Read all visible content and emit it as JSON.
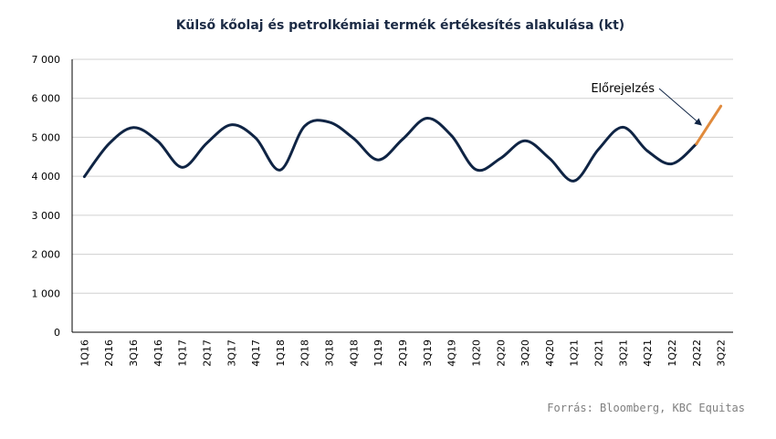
{
  "chart_data": {
    "type": "line",
    "title": "Külső kőolaj és petrolkémiai termék értékesítés alakulása (kt)",
    "categories": [
      "1Q16",
      "2Q16",
      "3Q16",
      "4Q16",
      "1Q17",
      "2Q17",
      "3Q17",
      "4Q17",
      "1Q18",
      "2Q18",
      "3Q18",
      "4Q18",
      "1Q19",
      "2Q19",
      "3Q19",
      "4Q19",
      "1Q20",
      "2Q20",
      "3Q20",
      "4Q20",
      "1Q21",
      "2Q21",
      "3Q21",
      "4Q21",
      "1Q22",
      "2Q22",
      "3Q22"
    ],
    "series": [
      {
        "name": "",
        "color": "#0f2444",
        "values": [
          3990,
          4830,
          5250,
          4900,
          4230,
          4850,
          5320,
          4980,
          4160,
          5290,
          5390,
          4970,
          4420,
          4950,
          5490,
          5040,
          4170,
          4460,
          4910,
          4460,
          3880,
          4690,
          5260,
          4650,
          4320,
          4830,
          null
        ]
      },
      {
        "name": "Előrejelzés",
        "color": "#e08a3c",
        "values": [
          null,
          null,
          null,
          null,
          null,
          null,
          null,
          null,
          null,
          null,
          null,
          null,
          null,
          null,
          null,
          null,
          null,
          null,
          null,
          null,
          null,
          null,
          null,
          null,
          null,
          4830,
          5800
        ]
      }
    ],
    "ylim": [
      0,
      7000
    ],
    "yticks": [
      0,
      1000,
      2000,
      3000,
      4000,
      5000,
      6000,
      7000
    ],
    "ytick_labels": [
      "0",
      "1 000",
      "2 000",
      "3 000",
      "4 000",
      "5 000",
      "6 000",
      "7 000"
    ],
    "grid": true,
    "annotation": {
      "text": "Előrejelzés"
    },
    "source": "Forrás: Bloomberg, KBC Equitas"
  }
}
